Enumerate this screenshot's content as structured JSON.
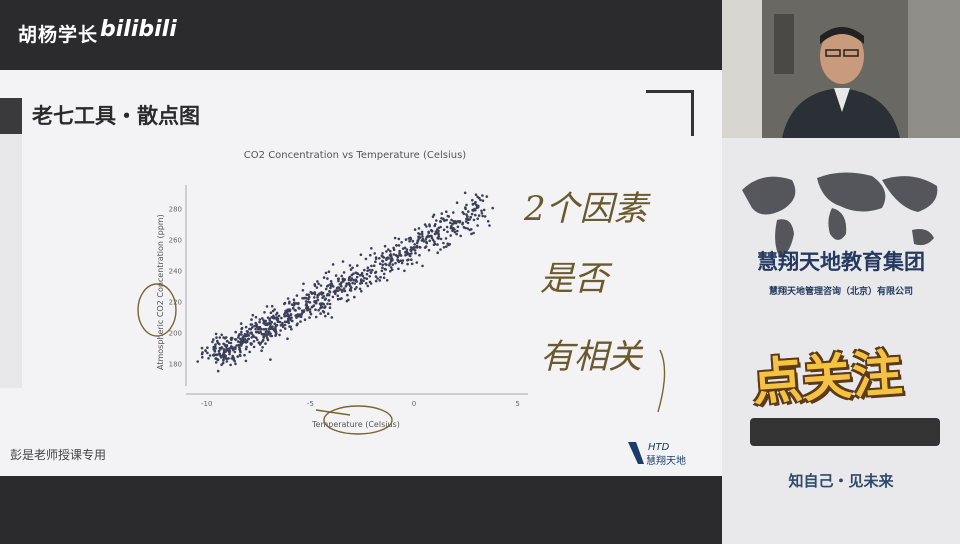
{
  "header": {
    "channel_name": "胡杨学长",
    "brand": "bilibili"
  },
  "slide": {
    "title": "老七工具・散点图",
    "footer": "彭是老师授课专用",
    "logo_text": "HTD",
    "logo_sub": "慧翔天地"
  },
  "annotations": {
    "line1": "2个因素",
    "line2": "是否",
    "line3": "有相关"
  },
  "chart_data": {
    "type": "scatter",
    "title": "CO2 Concentration vs Temperature (Celsius)",
    "xlabel": "Temperature (Celsius)",
    "ylabel": "Atmospheric CO2 Concentration (ppm)",
    "xlim": [
      -11,
      5.5
    ],
    "ylim": [
      166,
      296
    ],
    "xticks": [
      -10,
      -5,
      0,
      5
    ],
    "yticks": [
      180,
      200,
      220,
      240,
      260,
      280
    ],
    "color": "#3b3f58",
    "points_note": "",
    "trend": {
      "x_start": -9.5,
      "y_start": 186,
      "x_end": 3.5,
      "y_end": 282
    }
  },
  "side_panel": {
    "group_name": "慧翔天地教育集团",
    "group_sub": "慧翔天地管理咨询（北京）有限公司",
    "follow_text": "点关注",
    "slogan": "知自己・见未来"
  },
  "colors": {
    "slide_bg": "#f3f3f5",
    "dark_bg": "#2b2b2e",
    "accent_yellow": "#f5c242",
    "navy": "#243a5e"
  }
}
